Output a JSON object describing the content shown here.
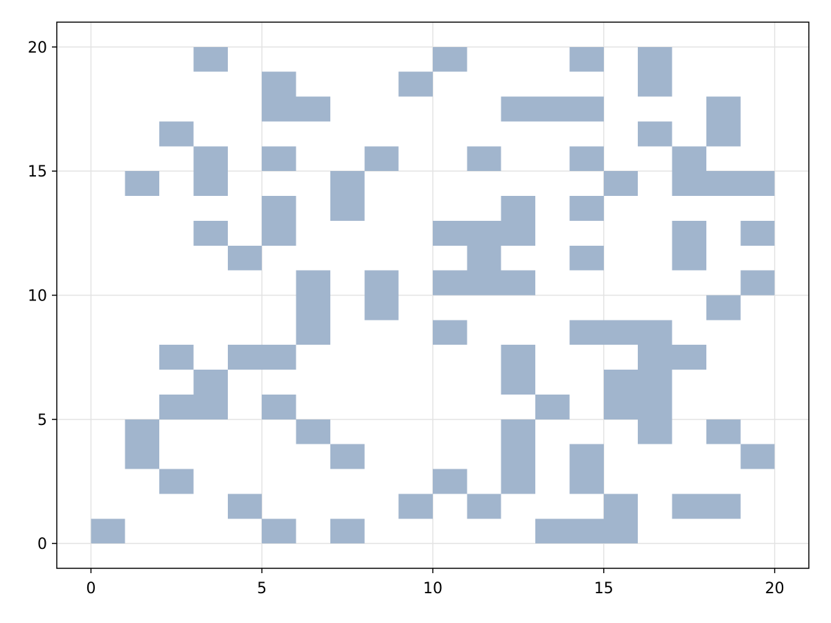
{
  "chart_data": {
    "type": "heatmap",
    "title": "",
    "xlabel": "",
    "ylabel": "",
    "xlim": [
      -1,
      21
    ],
    "ylim": [
      -1,
      21
    ],
    "x_ticks": [
      0,
      5,
      10,
      15,
      20
    ],
    "y_ticks": [
      0,
      5,
      10,
      15,
      20
    ],
    "x_tick_labels": [
      "0",
      "5",
      "10",
      "15",
      "20"
    ],
    "y_tick_labels": [
      "0",
      "5",
      "10",
      "15",
      "20"
    ],
    "grid": true,
    "legend": "none",
    "cell_color": "#a1b5cd",
    "cell_size": 1,
    "cells": [
      [
        0,
        0
      ],
      [
        5,
        0
      ],
      [
        7,
        0
      ],
      [
        13,
        0
      ],
      [
        14,
        0
      ],
      [
        15,
        0
      ],
      [
        4,
        1
      ],
      [
        9,
        1
      ],
      [
        11,
        1
      ],
      [
        15,
        1
      ],
      [
        17,
        1
      ],
      [
        18,
        1
      ],
      [
        2,
        2
      ],
      [
        10,
        2
      ],
      [
        12,
        2
      ],
      [
        14,
        2
      ],
      [
        1,
        3
      ],
      [
        7,
        3
      ],
      [
        12,
        3
      ],
      [
        14,
        3
      ],
      [
        19,
        3
      ],
      [
        1,
        4
      ],
      [
        6,
        4
      ],
      [
        12,
        4
      ],
      [
        16,
        4
      ],
      [
        18,
        4
      ],
      [
        2,
        5
      ],
      [
        3,
        5
      ],
      [
        5,
        5
      ],
      [
        13,
        5
      ],
      [
        15,
        5
      ],
      [
        16,
        5
      ],
      [
        3,
        6
      ],
      [
        12,
        6
      ],
      [
        15,
        6
      ],
      [
        16,
        6
      ],
      [
        2,
        7
      ],
      [
        4,
        7
      ],
      [
        5,
        7
      ],
      [
        12,
        7
      ],
      [
        16,
        7
      ],
      [
        17,
        7
      ],
      [
        6,
        8
      ],
      [
        10,
        8
      ],
      [
        14,
        8
      ],
      [
        15,
        8
      ],
      [
        16,
        8
      ],
      [
        6,
        9
      ],
      [
        8,
        9
      ],
      [
        18,
        9
      ],
      [
        6,
        10
      ],
      [
        8,
        10
      ],
      [
        10,
        10
      ],
      [
        11,
        10
      ],
      [
        12,
        10
      ],
      [
        19,
        10
      ],
      [
        4,
        11
      ],
      [
        11,
        11
      ],
      [
        14,
        11
      ],
      [
        17,
        11
      ],
      [
        3,
        12
      ],
      [
        5,
        12
      ],
      [
        10,
        12
      ],
      [
        11,
        12
      ],
      [
        12,
        12
      ],
      [
        17,
        12
      ],
      [
        19,
        12
      ],
      [
        5,
        13
      ],
      [
        7,
        13
      ],
      [
        12,
        13
      ],
      [
        14,
        13
      ],
      [
        1,
        14
      ],
      [
        3,
        14
      ],
      [
        7,
        14
      ],
      [
        15,
        14
      ],
      [
        17,
        14
      ],
      [
        18,
        14
      ],
      [
        19,
        14
      ],
      [
        3,
        15
      ],
      [
        5,
        15
      ],
      [
        8,
        15
      ],
      [
        11,
        15
      ],
      [
        14,
        15
      ],
      [
        17,
        15
      ],
      [
        2,
        16
      ],
      [
        16,
        16
      ],
      [
        18,
        16
      ],
      [
        5,
        17
      ],
      [
        6,
        17
      ],
      [
        12,
        17
      ],
      [
        13,
        17
      ],
      [
        14,
        17
      ],
      [
        18,
        17
      ],
      [
        5,
        18
      ],
      [
        9,
        18
      ],
      [
        16,
        18
      ],
      [
        3,
        19
      ],
      [
        10,
        19
      ],
      [
        14,
        19
      ],
      [
        16,
        19
      ]
    ]
  }
}
